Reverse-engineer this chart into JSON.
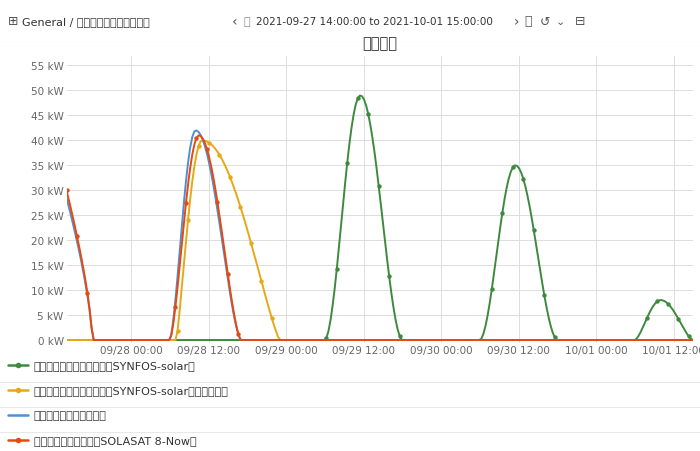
{
  "title": "予実監視",
  "header_text": "General / 太陽光発電量監視パネル",
  "date_range": "2021-09-27 14:00:00 to 2021-10-01 15:00:00",
  "yticks": [
    0,
    5,
    10,
    15,
    20,
    25,
    30,
    35,
    40,
    45,
    50,
    55
  ],
  "ytick_labels": [
    "0 kW",
    "5 kW",
    "10 kW",
    "15 kW",
    "20 kW",
    "25 kW",
    "30 kW",
    "35 kW",
    "40 kW",
    "45 kW",
    "50 kW",
    "55 kW"
  ],
  "ylim": [
    -0.5,
    57
  ],
  "background_color": "#ffffff",
  "plot_bg_color": "#ffffff",
  "grid_color": "#dddddd",
  "header_bg": "#f4f4f4",
  "colors": {
    "green": "#3d8a3d",
    "yellow": "#e6a817",
    "blue": "#4f90d4",
    "orange": "#e8490f"
  },
  "legend_labels": [
    "短期太陽光発電出力予測（SYNFOS-solar）",
    "短期太陽光発電出力予測（SYNFOS-solar）＋逐次補正",
    "現地太陽光発電出力実績",
    "太陽光発電出力指定（SOLASAT 8-Now）"
  ],
  "xticklabels": [
    "09/28 00:00",
    "09/28 12:00",
    "09/29 00:00",
    "09/29 12:00",
    "09/30 00:00",
    "09/30 12:00",
    "10/01 00:00",
    "10/01 12:00"
  ],
  "xtick_pos": [
    10,
    22,
    34,
    46,
    58,
    70,
    82,
    94
  ]
}
